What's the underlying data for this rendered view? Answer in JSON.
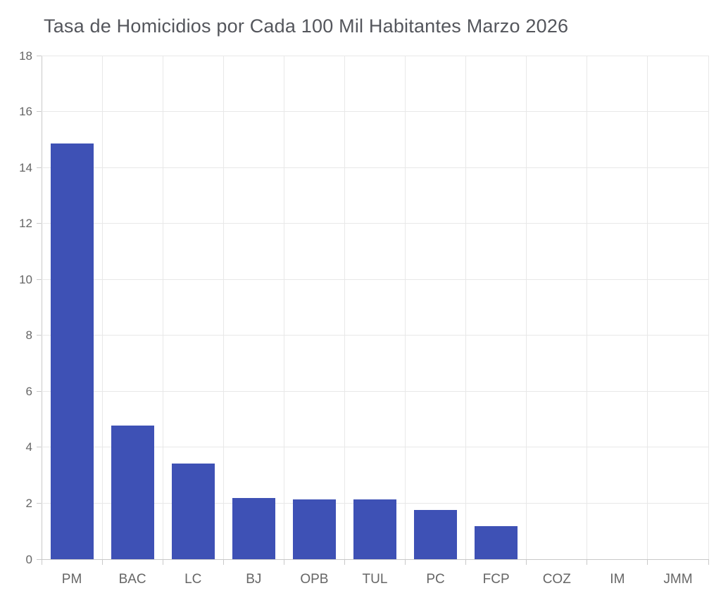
{
  "chart_data": {
    "type": "bar",
    "title": "Tasa de Homicidios por Cada 100 Mil Habitantes Marzo 2026",
    "categories": [
      "PM",
      "BAC",
      "LC",
      "BJ",
      "OPB",
      "TUL",
      "PC",
      "FCP",
      "COZ",
      "IM",
      "JMM"
    ],
    "values": [
      14.85,
      4.77,
      3.42,
      2.18,
      2.13,
      2.13,
      1.77,
      1.19,
      0,
      0,
      0
    ],
    "xlabel": "",
    "ylabel": "",
    "ylim": [
      0,
      18
    ],
    "ytick_step": 2,
    "ytick_labels": [
      "0",
      "2",
      "4",
      "6",
      "8",
      "10",
      "12",
      "14",
      "16",
      "18"
    ],
    "grid": true,
    "legend": false,
    "bar_color": "#3e51b5",
    "grid_color": "#e8e8e8",
    "axis_color": "#c9c9c9",
    "tick_label_color": "#666666",
    "title_color": "#54565c"
  }
}
